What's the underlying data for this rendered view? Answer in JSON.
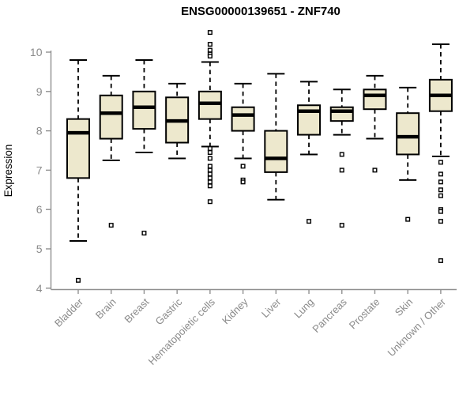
{
  "chart_data": {
    "type": "box",
    "title": "ENSG00000139651 - ZNF740",
    "ylabel": "Expression",
    "xlabel": "",
    "ylim": [
      3.9,
      10.6
    ],
    "yticks": [
      4,
      5,
      6,
      7,
      8,
      9,
      10
    ],
    "grid": false,
    "legend": "none",
    "box_fill_color": "#EDE8CD",
    "box_stroke_color": "#000000",
    "axis_color": "#909090",
    "label_color": "#8A8A8A",
    "title_color": "#000000",
    "categories": [
      {
        "label": "Bladder",
        "stats": {
          "lo": 5.2,
          "q1": 6.8,
          "med": 7.95,
          "q3": 8.3,
          "hi": 9.8,
          "outliers": [
            4.2
          ]
        }
      },
      {
        "label": "Brain",
        "stats": {
          "lo": 7.25,
          "q1": 7.8,
          "med": 8.45,
          "q3": 8.9,
          "hi": 9.4,
          "outliers": [
            5.6
          ]
        }
      },
      {
        "label": "Breast",
        "stats": {
          "lo": 7.45,
          "q1": 8.05,
          "med": 8.6,
          "q3": 9.0,
          "hi": 9.8,
          "outliers": [
            5.4
          ]
        }
      },
      {
        "label": "Gastric",
        "stats": {
          "lo": 7.3,
          "q1": 7.7,
          "med": 8.25,
          "q3": 8.85,
          "hi": 9.2,
          "outliers": []
        }
      },
      {
        "label": "Hematopoietic cells",
        "stats": {
          "lo": 7.6,
          "q1": 8.3,
          "med": 8.7,
          "q3": 9.0,
          "hi": 9.75,
          "outliers": [
            10.5,
            10.2,
            10.05,
            9.95,
            9.9,
            7.55,
            7.45,
            7.3,
            7.1,
            7.0,
            6.9,
            6.8,
            6.7,
            6.6,
            6.2
          ]
        }
      },
      {
        "label": "Kidney",
        "stats": {
          "lo": 7.3,
          "q1": 8.0,
          "med": 8.4,
          "q3": 8.6,
          "hi": 9.2,
          "outliers": [
            7.1,
            6.75,
            6.7
          ]
        }
      },
      {
        "label": "Liver",
        "stats": {
          "lo": 6.25,
          "q1": 6.95,
          "med": 7.3,
          "q3": 8.0,
          "hi": 9.45,
          "outliers": []
        }
      },
      {
        "label": "Lung",
        "stats": {
          "lo": 7.4,
          "q1": 7.9,
          "med": 8.5,
          "q3": 8.65,
          "hi": 9.25,
          "outliers": [
            5.7
          ]
        }
      },
      {
        "label": "Pancreas",
        "stats": {
          "lo": 7.9,
          "q1": 8.25,
          "med": 8.5,
          "q3": 8.6,
          "hi": 9.05,
          "outliers": [
            7.4,
            7.0,
            5.6
          ]
        }
      },
      {
        "label": "Prostate",
        "stats": {
          "lo": 7.8,
          "q1": 8.55,
          "med": 8.9,
          "q3": 9.05,
          "hi": 9.4,
          "outliers": [
            7.0
          ]
        }
      },
      {
        "label": "Skin",
        "stats": {
          "lo": 6.75,
          "q1": 7.4,
          "med": 7.85,
          "q3": 8.45,
          "hi": 9.1,
          "outliers": [
            5.75
          ]
        }
      },
      {
        "label": "Unknown / Other",
        "stats": {
          "lo": 7.35,
          "q1": 8.5,
          "med": 8.9,
          "q3": 9.3,
          "hi": 10.2,
          "outliers": [
            7.2,
            6.9,
            6.7,
            6.5,
            6.35,
            6.0,
            5.95,
            5.7,
            4.7
          ]
        }
      }
    ]
  }
}
